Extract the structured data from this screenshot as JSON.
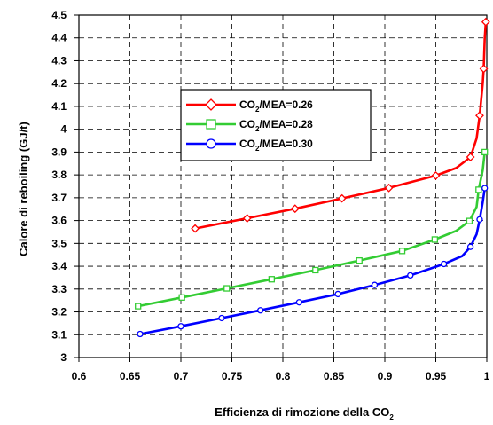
{
  "chart_data": {
    "type": "line",
    "xlabel": "Efficienza di rimozione della CO",
    "xlabel_sub": "2",
    "ylabel": "Calore di reboiling (GJ/t)",
    "xlim": [
      0.6,
      1.0
    ],
    "ylim": [
      3.0,
      4.5
    ],
    "x_ticks": [
      "0.6",
      "0.65",
      "0.7",
      "0.75",
      "0.8",
      "0.85",
      "0.9",
      "0.95",
      "1"
    ],
    "y_ticks": [
      "3",
      "3.1",
      "3.2",
      "3.3",
      "3.4",
      "3.5",
      "3.6",
      "3.7",
      "3.8",
      "3.9",
      "4",
      "4.1",
      "4.2",
      "4.3",
      "4.4",
      "4.5"
    ],
    "grid": true,
    "legend_position": "upper-left",
    "series": [
      {
        "name_prefix": "CO",
        "name_sub": "2",
        "name_suffix": "/MEA=0.26",
        "color": "#ff0000",
        "marker": "diamond",
        "points": [
          [
            0.714,
            3.565
          ],
          [
            0.765,
            3.61
          ],
          [
            0.812,
            3.652
          ],
          [
            0.858,
            3.697
          ],
          [
            0.904,
            3.743
          ],
          [
            0.95,
            3.797
          ],
          [
            0.97,
            3.83
          ],
          [
            0.984,
            3.878
          ],
          [
            0.99,
            3.96
          ],
          [
            0.993,
            4.06
          ],
          [
            0.996,
            4.2
          ],
          [
            0.997,
            4.265
          ],
          [
            0.998,
            4.4
          ],
          [
            0.999,
            4.47
          ]
        ],
        "marker_points": [
          [
            0.714,
            3.565
          ],
          [
            0.765,
            3.61
          ],
          [
            0.812,
            3.652
          ],
          [
            0.858,
            3.697
          ],
          [
            0.904,
            3.743
          ],
          [
            0.95,
            3.797
          ],
          [
            0.984,
            3.878
          ],
          [
            0.993,
            4.06
          ],
          [
            0.997,
            4.265
          ],
          [
            0.999,
            4.47
          ]
        ]
      },
      {
        "name_prefix": "CO",
        "name_sub": "2",
        "name_suffix": "/MEA=0.28",
        "color": "#33cc33",
        "marker": "square",
        "points": [
          [
            0.658,
            3.225
          ],
          [
            0.701,
            3.263
          ],
          [
            0.745,
            3.303
          ],
          [
            0.789,
            3.343
          ],
          [
            0.832,
            3.383
          ],
          [
            0.875,
            3.425
          ],
          [
            0.917,
            3.467
          ],
          [
            0.949,
            3.517
          ],
          [
            0.97,
            3.555
          ],
          [
            0.983,
            3.598
          ],
          [
            0.99,
            3.66
          ],
          [
            0.992,
            3.735
          ],
          [
            0.996,
            3.82
          ],
          [
            0.998,
            3.9
          ]
        ],
        "marker_points": [
          [
            0.658,
            3.225
          ],
          [
            0.701,
            3.263
          ],
          [
            0.745,
            3.303
          ],
          [
            0.789,
            3.343
          ],
          [
            0.832,
            3.383
          ],
          [
            0.875,
            3.425
          ],
          [
            0.917,
            3.467
          ],
          [
            0.949,
            3.517
          ],
          [
            0.983,
            3.598
          ],
          [
            0.992,
            3.735
          ],
          [
            0.998,
            3.9
          ]
        ]
      },
      {
        "name_prefix": "CO",
        "name_sub": "2",
        "name_suffix": "/MEA=0.30",
        "color": "#0000ff",
        "marker": "circle",
        "points": [
          [
            0.66,
            3.103
          ],
          [
            0.7,
            3.137
          ],
          [
            0.74,
            3.173
          ],
          [
            0.778,
            3.207
          ],
          [
            0.816,
            3.242
          ],
          [
            0.854,
            3.278
          ],
          [
            0.89,
            3.318
          ],
          [
            0.925,
            3.36
          ],
          [
            0.958,
            3.41
          ],
          [
            0.976,
            3.445
          ],
          [
            0.984,
            3.485
          ],
          [
            0.99,
            3.54
          ],
          [
            0.993,
            3.605
          ],
          [
            0.996,
            3.68
          ],
          [
            0.998,
            3.742
          ]
        ],
        "marker_points": [
          [
            0.66,
            3.103
          ],
          [
            0.7,
            3.137
          ],
          [
            0.74,
            3.173
          ],
          [
            0.778,
            3.207
          ],
          [
            0.816,
            3.242
          ],
          [
            0.854,
            3.278
          ],
          [
            0.89,
            3.318
          ],
          [
            0.925,
            3.36
          ],
          [
            0.958,
            3.41
          ],
          [
            0.984,
            3.485
          ],
          [
            0.993,
            3.605
          ],
          [
            0.998,
            3.742
          ]
        ]
      }
    ]
  }
}
